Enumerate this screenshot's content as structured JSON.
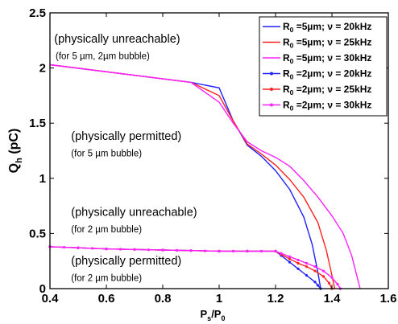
{
  "chart_data": {
    "type": "line",
    "xlabel": "P",
    "xlabel_sub": "s",
    "xlabel_tail": "/P",
    "xlabel_tail_sub": "0",
    "ylabel": "Q",
    "ylabel_sub": "h",
    "ylabel_tail": " (pC)",
    "xlim": [
      0.4,
      1.6
    ],
    "ylim": [
      0,
      2.5
    ],
    "x_ticks": [
      "0.4",
      "0.6",
      "0.8",
      "1",
      "1.2",
      "1.4",
      "1.6"
    ],
    "y_ticks": [
      "0",
      "0.5",
      "1",
      "1.5",
      "2",
      "2.5"
    ],
    "grid": false,
    "legend_position": "top-right",
    "series": [
      {
        "name": "R0=5µm; ν = 20kHz",
        "legend_main": "R",
        "legend_sub": "0",
        "legend_tail": " =5µm; ν = 20kHz",
        "color": "#2020ff",
        "marker": "none",
        "x": [
          0.4,
          0.9,
          1.0,
          1.05,
          1.1,
          1.15,
          1.2,
          1.25,
          1.3,
          1.33,
          1.35,
          1.36
        ],
        "y": [
          2.03,
          1.87,
          1.82,
          1.52,
          1.3,
          1.2,
          1.07,
          0.9,
          0.65,
          0.4,
          0.15,
          0.0
        ]
      },
      {
        "name": "R0=5µm; ν = 25kHz",
        "legend_main": "R",
        "legend_sub": "0",
        "legend_tail": " =5µm; ν = 25kHz",
        "color": "#ff2020",
        "marker": "none",
        "x": [
          0.4,
          0.9,
          1.0,
          1.05,
          1.1,
          1.15,
          1.2,
          1.25,
          1.3,
          1.35,
          1.38,
          1.4,
          1.41
        ],
        "y": [
          2.03,
          1.87,
          1.75,
          1.52,
          1.31,
          1.22,
          1.12,
          0.99,
          0.83,
          0.6,
          0.35,
          0.12,
          0.0
        ]
      },
      {
        "name": "R0=5µm; ν = 30kHz",
        "legend_main": "R",
        "legend_sub": "0",
        "legend_tail": " =5µm; ν = 30kHz",
        "color": "#ff20ff",
        "marker": "none",
        "x": [
          0.4,
          0.9,
          1.0,
          1.05,
          1.1,
          1.15,
          1.2,
          1.25,
          1.3,
          1.35,
          1.4,
          1.44,
          1.47,
          1.49,
          1.5
        ],
        "y": [
          2.03,
          1.87,
          1.69,
          1.5,
          1.33,
          1.25,
          1.19,
          1.11,
          0.98,
          0.83,
          0.66,
          0.5,
          0.3,
          0.1,
          0.0
        ]
      },
      {
        "name": "R0=2µm; ν = 20kHz",
        "legend_main": "R",
        "legend_sub": "0",
        "legend_tail": " =2µm; ν = 20kHz",
        "color": "#2020ff",
        "marker": "dot",
        "x": [
          0.4,
          0.5,
          0.6,
          0.7,
          0.8,
          0.9,
          1.0,
          1.1,
          1.2,
          1.22,
          1.25,
          1.28,
          1.31,
          1.34,
          1.35,
          1.36
        ],
        "y": [
          0.38,
          0.37,
          0.36,
          0.355,
          0.35,
          0.345,
          0.34,
          0.34,
          0.34,
          0.3,
          0.24,
          0.18,
          0.12,
          0.06,
          0.03,
          0.0
        ]
      },
      {
        "name": "R0=2µm; ν = 25kHz",
        "legend_main": "R",
        "legend_sub": "0",
        "legend_tail": " =2µm; ν = 25kHz",
        "color": "#ff2020",
        "marker": "dot",
        "x": [
          0.4,
          0.5,
          0.6,
          0.7,
          0.8,
          0.9,
          1.0,
          1.1,
          1.2,
          1.22,
          1.25,
          1.28,
          1.31,
          1.34,
          1.37,
          1.39,
          1.4
        ],
        "y": [
          0.38,
          0.37,
          0.36,
          0.355,
          0.35,
          0.345,
          0.34,
          0.34,
          0.34,
          0.31,
          0.27,
          0.23,
          0.2,
          0.16,
          0.11,
          0.05,
          0.0
        ]
      },
      {
        "name": "R0=2µm; ν = 30kHz",
        "legend_main": "R",
        "legend_sub": "0",
        "legend_tail": " =2µm; ν = 30kHz",
        "color": "#ff20ff",
        "marker": "dot",
        "x": [
          0.4,
          0.45,
          0.5,
          0.55,
          0.6,
          0.65,
          0.7,
          0.75,
          0.8,
          0.85,
          0.9,
          0.95,
          1.0,
          1.05,
          1.1,
          1.15,
          1.2,
          1.22,
          1.25,
          1.28,
          1.31,
          1.34,
          1.37,
          1.4,
          1.42,
          1.43
        ],
        "y": [
          0.38,
          0.375,
          0.37,
          0.365,
          0.36,
          0.357,
          0.355,
          0.352,
          0.35,
          0.347,
          0.345,
          0.342,
          0.34,
          0.34,
          0.34,
          0.34,
          0.34,
          0.32,
          0.29,
          0.26,
          0.23,
          0.2,
          0.16,
          0.1,
          0.04,
          0.0
        ]
      }
    ],
    "annotations": [
      {
        "id": "a1",
        "text": "(physically unreachable)",
        "size": "main",
        "x": 0.415,
        "y": 2.23
      },
      {
        "id": "a2",
        "text": "(for 5 µm, 2µm bubble)",
        "size": "sub",
        "x": 0.42,
        "y": 2.08
      },
      {
        "id": "a3",
        "text": "(physically permitted)",
        "size": "main",
        "x": 0.475,
        "y": 1.35
      },
      {
        "id": "a4",
        "text": "(for 5 µm bubble)",
        "size": "sub",
        "x": 0.475,
        "y": 1.2
      },
      {
        "id": "a5",
        "text": "(physically unreachable)",
        "size": "main",
        "x": 0.475,
        "y": 0.66
      },
      {
        "id": "a6",
        "text": "(for 2 µm bubble)",
        "size": "sub",
        "x": 0.475,
        "y": 0.51
      },
      {
        "id": "a7",
        "text": "(physically permitted)",
        "size": "main",
        "x": 0.475,
        "y": 0.22
      },
      {
        "id": "a8",
        "text": "(for 2 µm bubble)",
        "size": "sub",
        "x": 0.475,
        "y": 0.07
      }
    ]
  }
}
